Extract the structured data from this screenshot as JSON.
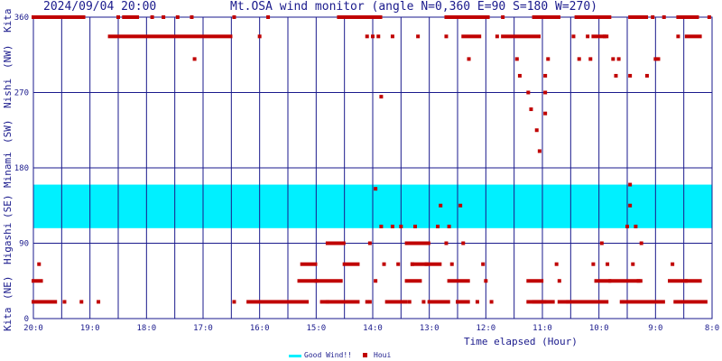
{
  "header": {
    "datetime": "2024/09/04 20:00",
    "title": "Mt.OSA wind monitor (angle N=0,360 E=90 S=180 W=270)"
  },
  "legend": {
    "good_wind": "Good Wind!!",
    "houi": "Houi"
  },
  "colors": {
    "grid": "#1a1a8c",
    "good_band": "#00f0ff",
    "points": "#c00000",
    "text": "#1a1a8c"
  },
  "chart_data": {
    "type": "scatter",
    "xlabel": "Time elapsed (Hour)",
    "x_ticks": [
      "20:0",
      "19:0",
      "18:0",
      "17:0",
      "16:0",
      "15:0",
      "14:0",
      "13:0",
      "12:0",
      "11:0",
      "10:0",
      "9:0",
      "8:0"
    ],
    "x_range_hours_ago": [
      0,
      12
    ],
    "ylim": [
      0,
      360
    ],
    "y_ticks": [
      0,
      90,
      180,
      270,
      360
    ],
    "y_direction_labels": [
      "Kita",
      "(NE)",
      "Higashi",
      "(SE)",
      "Minami",
      "(SW)",
      "Nishi",
      "(NW)",
      "Kita"
    ],
    "good_wind_range": [
      108,
      160
    ],
    "grid": true,
    "legend_position": "bottom-center",
    "series": [
      {
        "name": "Houi",
        "segments": [
          [
            0.0,
            0.95,
            360
          ],
          [
            1.6,
            1.9,
            360
          ],
          [
            5.4,
            6.2,
            360
          ],
          [
            7.3,
            8.1,
            360
          ],
          [
            8.85,
            9.35,
            360
          ],
          [
            9.6,
            10.25,
            360
          ],
          [
            10.55,
            10.9,
            360
          ],
          [
            11.4,
            11.8,
            360
          ],
          [
            1.35,
            3.55,
            337
          ],
          [
            7.6,
            7.95,
            337
          ],
          [
            8.3,
            9.0,
            337
          ],
          [
            9.9,
            10.2,
            337
          ],
          [
            11.55,
            11.85,
            337
          ],
          [
            0.0,
            0.2,
            45
          ],
          [
            9.95,
            10.25,
            45
          ],
          [
            10.2,
            10.8,
            45
          ],
          [
            11.25,
            11.6,
            45
          ],
          [
            11.55,
            11.85,
            45
          ],
          [
            0.0,
            0.45,
            20
          ],
          [
            3.8,
            4.9,
            20
          ],
          [
            5.1,
            5.8,
            20
          ],
          [
            6.25,
            6.65,
            20
          ],
          [
            7.0,
            7.4,
            20
          ],
          [
            7.5,
            7.75,
            20
          ],
          [
            8.75,
            9.25,
            20
          ],
          [
            9.3,
            10.2,
            20
          ],
          [
            10.45,
            11.2,
            20
          ],
          [
            11.35,
            11.95,
            20
          ],
          [
            6.6,
            7.05,
            90
          ],
          [
            4.75,
            5.05,
            65
          ],
          [
            6.7,
            7.25,
            65
          ],
          [
            4.7,
            5.5,
            45
          ],
          [
            6.6,
            6.9,
            45
          ],
          [
            7.35,
            7.75,
            45
          ],
          [
            5.2,
            5.55,
            90
          ],
          [
            5.5,
            5.8,
            65
          ],
          [
            8.75,
            9.05,
            45
          ],
          [
            8.85,
            9.1,
            20
          ]
        ],
        "points": [
          [
            0.1,
            65
          ],
          [
            0.55,
            20
          ],
          [
            0.85,
            20
          ],
          [
            1.15,
            20
          ],
          [
            1.5,
            360
          ],
          [
            1.7,
            360
          ],
          [
            2.1,
            360
          ],
          [
            2.3,
            360
          ],
          [
            2.55,
            360
          ],
          [
            2.8,
            360
          ],
          [
            2.85,
            310
          ],
          [
            3.55,
            20
          ],
          [
            3.55,
            360
          ],
          [
            4.0,
            337
          ],
          [
            4.15,
            360
          ],
          [
            5.0,
            45
          ],
          [
            5.2,
            20
          ],
          [
            5.75,
            360
          ],
          [
            5.9,
            337
          ],
          [
            5.9,
            20
          ],
          [
            5.95,
            90
          ],
          [
            5.95,
            20
          ],
          [
            6.0,
            337
          ],
          [
            6.0,
            360
          ],
          [
            6.1,
            337
          ],
          [
            6.05,
            45
          ],
          [
            6.15,
            265
          ],
          [
            6.15,
            110
          ],
          [
            6.2,
            65
          ],
          [
            6.35,
            337
          ],
          [
            6.35,
            110
          ],
          [
            6.45,
            65
          ],
          [
            6.5,
            110
          ],
          [
            6.65,
            20
          ],
          [
            6.7,
            65
          ],
          [
            6.75,
            110
          ],
          [
            6.8,
            337
          ],
          [
            6.9,
            20
          ],
          [
            6.95,
            65
          ],
          [
            7.15,
            110
          ],
          [
            7.2,
            135
          ],
          [
            7.3,
            337
          ],
          [
            7.3,
            90
          ],
          [
            7.4,
            65
          ],
          [
            7.5,
            20
          ],
          [
            7.55,
            135
          ],
          [
            7.6,
            90
          ],
          [
            7.7,
            310
          ],
          [
            7.85,
            20
          ],
          [
            7.95,
            65
          ],
          [
            8.0,
            45
          ],
          [
            8.1,
            20
          ],
          [
            8.2,
            337
          ],
          [
            8.3,
            360
          ],
          [
            8.55,
            310
          ],
          [
            8.6,
            290
          ],
          [
            8.75,
            270
          ],
          [
            8.8,
            250
          ],
          [
            8.9,
            225
          ],
          [
            8.95,
            200
          ],
          [
            9.05,
            290
          ],
          [
            9.05,
            270
          ],
          [
            9.05,
            245
          ],
          [
            9.1,
            310
          ],
          [
            9.1,
            360
          ],
          [
            9.25,
            65
          ],
          [
            9.3,
            45
          ],
          [
            9.45,
            20
          ],
          [
            9.55,
            337
          ],
          [
            9.65,
            310
          ],
          [
            9.7,
            360
          ],
          [
            9.8,
            337
          ],
          [
            9.85,
            310
          ],
          [
            9.9,
            65
          ],
          [
            10.05,
            90
          ],
          [
            10.1,
            337
          ],
          [
            10.15,
            65
          ],
          [
            10.25,
            310
          ],
          [
            10.3,
            290
          ],
          [
            10.35,
            310
          ],
          [
            10.4,
            20
          ],
          [
            10.5,
            110
          ],
          [
            10.55,
            135
          ],
          [
            10.55,
            290
          ],
          [
            10.6,
            65
          ],
          [
            10.65,
            110
          ],
          [
            10.7,
            45
          ],
          [
            10.75,
            90
          ],
          [
            10.85,
            290
          ],
          [
            10.95,
            360
          ],
          [
            11.0,
            310
          ],
          [
            11.05,
            310
          ],
          [
            11.15,
            360
          ],
          [
            11.3,
            65
          ],
          [
            11.4,
            337
          ],
          [
            11.7,
            360
          ],
          [
            11.95,
            360
          ],
          [
            6.05,
            155
          ],
          [
            7.35,
            110
          ],
          [
            10.55,
            160
          ]
        ]
      }
    ]
  }
}
